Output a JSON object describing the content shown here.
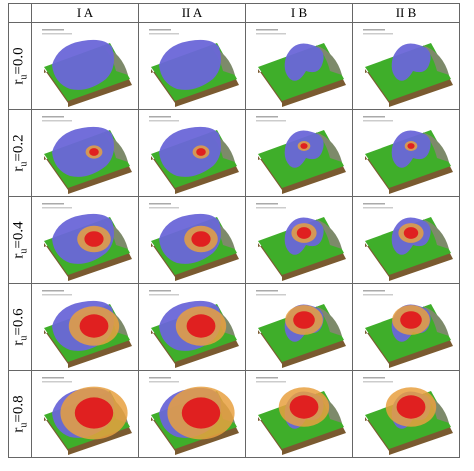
{
  "columns": [
    "I A",
    "II A",
    "I B",
    "II B"
  ],
  "rows": [
    {
      "var": "r",
      "sub": "u",
      "eq": "=0.0"
    },
    {
      "var": "r",
      "sub": "u",
      "eq": "=0.2"
    },
    {
      "var": "r",
      "sub": "u",
      "eq": "=0.4"
    },
    {
      "var": "r",
      "sub": "u",
      "eq": "=0.6"
    },
    {
      "var": "r",
      "sub": "u",
      "eq": "=0.8"
    }
  ]
}
